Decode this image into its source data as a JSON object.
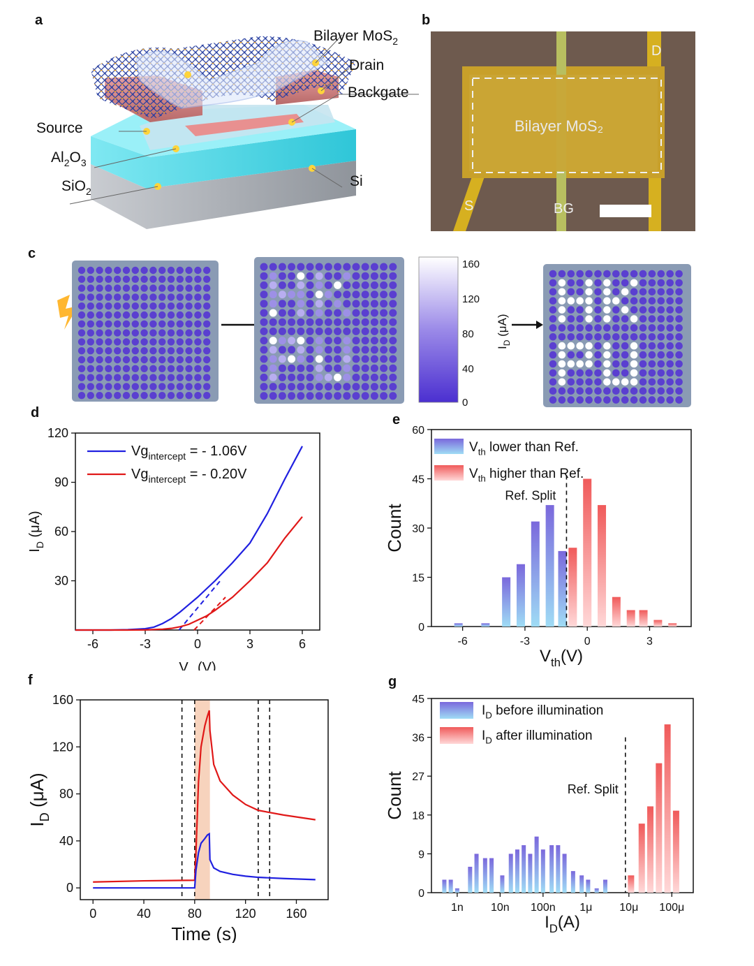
{
  "panel_letters": {
    "a": "a",
    "b": "b",
    "c": "c",
    "d": "d",
    "e": "e",
    "f": "f",
    "g": "g"
  },
  "colors": {
    "blue": "#2020e0",
    "red": "#e01818",
    "bar_blue": "#7b6ee0",
    "bar_red": "#f07070",
    "dot": "#5a3fd0",
    "board": "#8a9bb4"
  },
  "panel_a": {
    "labels": {
      "bilayer": "Bilayer MoS",
      "bilayer_sub": "2",
      "drain": "Drain",
      "backgate": "Backgate",
      "source": "Source",
      "al2o3_a": "Al",
      "al2o3_sub1": "2",
      "al2o3_b": "O",
      "al2o3_sub2": "3",
      "sio2_a": "SiO",
      "sio2_sub": "2",
      "si": "Si"
    }
  },
  "panel_b": {
    "d": "D",
    "s": "S",
    "bg": "BG",
    "bilayer": "Bilayer MoS₂"
  },
  "panel_c": {
    "colorbar_ticks": [
      "160",
      "120",
      "80",
      "40",
      "0"
    ],
    "colorbar_label": "I",
    "colorbar_label_sub": "D",
    "colorbar_label_unit": " (μA)"
  },
  "panel_d": {
    "chart_data": {
      "type": "line",
      "xlabel": "V",
      "xlabel_sub": "g",
      "xlabel_unit": " (V)",
      "ylabel": "I",
      "ylabel_sub": "D",
      "ylabel_unit": " (μA)",
      "xlim": [
        -7,
        7
      ],
      "ylim": [
        0,
        120
      ],
      "xticks": [
        -6,
        -3,
        0,
        3,
        6
      ],
      "yticks": [
        30,
        60,
        90,
        120
      ],
      "series": [
        {
          "name": "blue",
          "legend": "Vg",
          "legend_sub": "intercept",
          "legend_val": " = - 1.06V",
          "x": [
            -7,
            -5,
            -4,
            -3,
            -2.5,
            -2,
            -1.5,
            -1,
            -0.5,
            0,
            0.5,
            1,
            2,
            3,
            4,
            5,
            6
          ],
          "y": [
            0,
            0,
            0.2,
            0.8,
            1.8,
            4,
            7,
            11,
            15.5,
            20,
            25,
            30,
            41,
            53,
            71,
            92,
            112
          ]
        },
        {
          "name": "red",
          "legend": "Vg",
          "legend_sub": "intercept",
          "legend_val": " = - 0.20V",
          "x": [
            -7,
            -4,
            -3,
            -2,
            -1.5,
            -1,
            -0.5,
            0,
            0.5,
            1,
            2,
            3,
            4,
            5,
            6
          ],
          "y": [
            0,
            0,
            0.1,
            0.5,
            1,
            2,
            3.5,
            6,
            8.5,
            12,
            20,
            30,
            41,
            56,
            69
          ]
        }
      ],
      "tangents": [
        {
          "name": "blue",
          "x": [
            -1.06,
            1.3
          ],
          "y": [
            0,
            30
          ]
        },
        {
          "name": "red",
          "x": [
            -0.2,
            1.6
          ],
          "y": [
            0,
            20
          ]
        }
      ]
    }
  },
  "panel_e": {
    "chart_data": {
      "type": "bar",
      "xlabel": "V",
      "xlabel_sub": "th",
      "xlabel_unit": "(V)",
      "ylabel": "Count",
      "xlim": [
        -7.5,
        5
      ],
      "ylim": [
        0,
        60
      ],
      "xticks": [
        -6,
        -3,
        0,
        3
      ],
      "yticks": [
        0,
        15,
        30,
        45,
        60
      ],
      "ref_split_label": "Ref. Split",
      "ref_split_x": -1.0,
      "legend": [
        {
          "text_a": "V",
          "sub": "th",
          "text_b": "  lower than Ref."
        },
        {
          "text_a": "V",
          "sub": "th",
          "text_b": "  higher than Ref."
        }
      ],
      "series": [
        {
          "name": "lower",
          "x": [
            -6.2,
            -4.9,
            -3.9,
            -3.2,
            -2.5,
            -1.8,
            -1.2
          ],
          "values": [
            1,
            1,
            15,
            19,
            32,
            37,
            23
          ]
        },
        {
          "name": "higher",
          "x": [
            -0.7,
            0,
            0.7,
            1.4,
            2.1,
            2.7,
            3.4,
            4.1
          ],
          "values": [
            24,
            45,
            37,
            9,
            5,
            5,
            2,
            1
          ]
        }
      ]
    }
  },
  "panel_f": {
    "chart_data": {
      "type": "line",
      "xlabel": "Time (s)",
      "ylabel": "I",
      "ylabel_sub": "D",
      "ylabel_unit": " (μA)",
      "xlim": [
        -10,
        185
      ],
      "ylim": [
        -10,
        160
      ],
      "xticks": [
        0,
        40,
        80,
        120,
        160
      ],
      "yticks": [
        0,
        40,
        80,
        120,
        160
      ],
      "shade": [
        80,
        92
      ],
      "vlines": [
        70,
        80,
        130,
        139
      ],
      "series": [
        {
          "name": "red",
          "x": [
            0,
            40,
            80,
            81,
            83,
            85,
            88,
            90,
            91.5,
            92,
            95,
            100,
            110,
            120,
            130,
            150,
            175
          ],
          "y": [
            5,
            6,
            6.5,
            30,
            90,
            120,
            138,
            146,
            151,
            134,
            105,
            91,
            79,
            71,
            66,
            62,
            58
          ]
        },
        {
          "name": "blue",
          "x": [
            0,
            40,
            80,
            81,
            83,
            85,
            88,
            90,
            91.5,
            92,
            95,
            100,
            110,
            120,
            130,
            150,
            175
          ],
          "y": [
            0,
            0,
            0,
            15,
            30,
            38,
            42,
            45,
            46,
            24,
            17,
            14,
            11.5,
            10,
            9,
            8,
            7
          ]
        }
      ]
    }
  },
  "panel_g": {
    "chart_data": {
      "type": "bar",
      "xlabel": "I",
      "xlabel_sub": "D",
      "xlabel_unit": "(A)",
      "ylabel": "Count",
      "xlim_log10": [
        -9.6,
        -3.5
      ],
      "ylim": [
        0,
        45
      ],
      "xtick_labels": [
        "1n",
        "10n",
        "100n",
        "1μ",
        "10μ",
        "100μ"
      ],
      "xtick_log10": [
        -9,
        -8,
        -7,
        -6,
        -5,
        -4
      ],
      "yticks": [
        0,
        9,
        18,
        27,
        36,
        45
      ],
      "ref_split_label": "Ref. Split",
      "ref_split_log10": -5.0,
      "legend": [
        {
          "text_a": "I",
          "sub": "D",
          "text_b": " before illumination"
        },
        {
          "text_a": "I",
          "sub": "D",
          "text_b": " after illumination"
        }
      ],
      "series": [
        {
          "name": "before",
          "log10": [
            -9.3,
            -9.15,
            -9.0,
            -8.7,
            -8.55,
            -8.35,
            -8.2,
            -7.95,
            -7.75,
            -7.6,
            -7.45,
            -7.3,
            -7.15,
            -7.0,
            -6.8,
            -6.65,
            -6.5,
            -6.3,
            -6.1,
            -5.95,
            -5.75,
            -5.55
          ],
          "values": [
            3,
            3,
            1,
            6,
            9,
            8,
            8,
            4,
            9,
            10,
            11,
            9,
            13,
            10,
            11,
            11,
            9,
            5,
            4,
            3,
            1,
            3
          ]
        },
        {
          "name": "after",
          "log10": [
            -4.95,
            -4.7,
            -4.5,
            -4.3,
            -4.1,
            -3.9
          ],
          "values": [
            4,
            16,
            20,
            30,
            39,
            19
          ]
        }
      ]
    }
  }
}
